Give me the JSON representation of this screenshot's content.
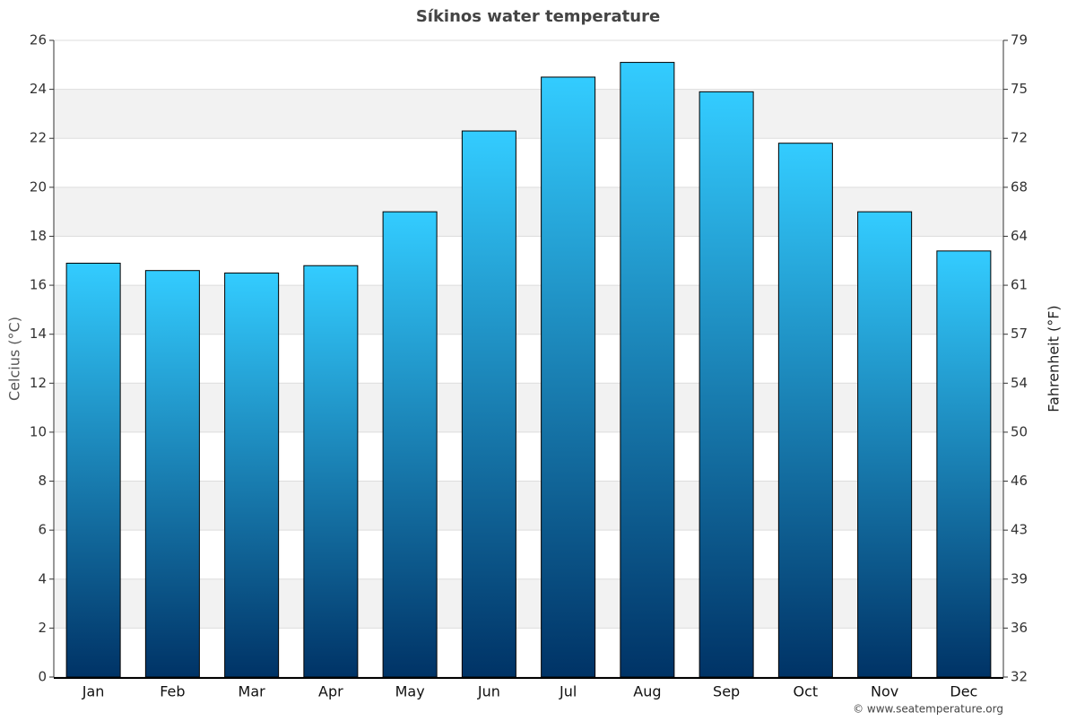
{
  "chart_data": {
    "type": "bar",
    "title": "Síkinos water temperature",
    "ylabel": "Celcius (°C)",
    "y2label": "Fahrenheit (°F)",
    "credit": "© www.seatemperature.org",
    "categories": [
      "Jan",
      "Feb",
      "Mar",
      "Apr",
      "May",
      "Jun",
      "Jul",
      "Aug",
      "Sep",
      "Oct",
      "Nov",
      "Dec"
    ],
    "values": [
      16.9,
      16.6,
      16.5,
      16.8,
      19.0,
      22.3,
      24.5,
      25.1,
      23.9,
      21.8,
      19.0,
      17.4
    ],
    "color": [
      "#33ccff",
      "#003366"
    ],
    "ylim": [
      0,
      26
    ],
    "yticks": [
      0,
      2,
      4,
      6,
      8,
      10,
      12,
      14,
      16,
      18,
      20,
      22,
      24,
      26
    ],
    "y2lim": [
      32,
      78.8
    ],
    "y2ticks": [
      32,
      {
        "value": 35.6,
        "label": "36"
      },
      {
        "value": 39.2,
        "label": "39"
      },
      {
        "value": 42.8,
        "label": "43"
      },
      {
        "value": 46.4,
        "label": "46"
      },
      50,
      {
        "value": 53.6,
        "label": "54"
      },
      {
        "value": 57.2,
        "label": "57"
      },
      {
        "value": 60.8,
        "label": "61"
      },
      {
        "value": 64.4,
        "label": "64"
      },
      68,
      {
        "value": 71.6,
        "label": "72"
      },
      {
        "value": 75.2,
        "label": "75"
      },
      {
        "value": 78.8,
        "label": "79"
      }
    ],
    "grid": true
  }
}
